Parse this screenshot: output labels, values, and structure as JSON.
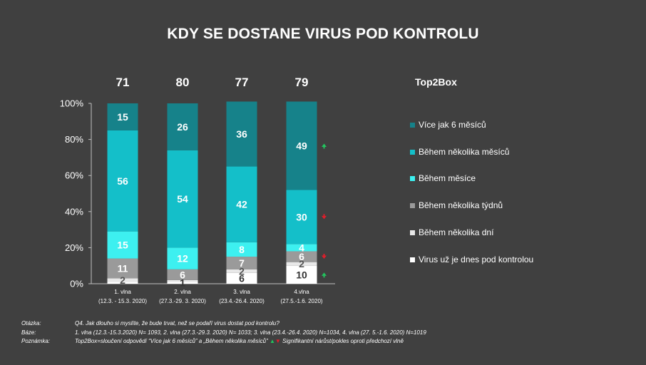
{
  "title": "KDY SE DOSTANE VIRUS POD KONTROLU",
  "legend": {
    "title": "Top2Box",
    "items": [
      {
        "label": "Více jak 6 měsíců",
        "color": "#16828a"
      },
      {
        "label": "Během několika měsíců",
        "color": "#14bfc9"
      },
      {
        "label": "Během měsíce",
        "color": "#3df0f0"
      },
      {
        "label": "Během několika týdnů",
        "color": "#9a9a9a"
      },
      {
        "label": "Během několika dní",
        "color": "#e8e8e8"
      },
      {
        "label": "Virus už je dnes pod kontrolou",
        "color": "#ffffff"
      }
    ]
  },
  "chart_data": {
    "type": "bar",
    "stacked": true,
    "categories": [
      [
        "1. vlna",
        "(12.3. - 15.3. 2020)"
      ],
      [
        "2. vlna",
        "(27.3.-29. 3. 2020)"
      ],
      [
        "3. vlna",
        "(23.4.-26.4. 2020)"
      ],
      [
        "4.vlna",
        "(27.5.-1.6. 2020)"
      ]
    ],
    "top2box": [
      "71",
      "80",
      "77",
      "79"
    ],
    "yticks": [
      "0%",
      "20%",
      "40%",
      "60%",
      "80%",
      "100%"
    ],
    "ylim": [
      0,
      100
    ],
    "series": [
      {
        "name": "Virus už je dnes pod kontrolou",
        "color": "#ffffff",
        "labelColor": "#333333",
        "values": [
          1,
          1,
          6,
          10
        ],
        "labels": [
          "",
          "1",
          "6",
          "10"
        ]
      },
      {
        "name": "Během několika dní",
        "color": "#e8e8e8",
        "labelColor": "#555555",
        "values": [
          2,
          1,
          2,
          2
        ],
        "labels": [
          "2",
          "",
          "2",
          "2"
        ]
      },
      {
        "name": "Během několika týdnů",
        "color": "#9a9a9a",
        "labelColor": "#ffffff",
        "values": [
          11,
          6,
          7,
          6
        ],
        "labels": [
          "11",
          "6",
          "7",
          "6"
        ]
      },
      {
        "name": "Během měsíce",
        "color": "#3df0f0",
        "labelColor": "#ffffff",
        "values": [
          15,
          12,
          8,
          4
        ],
        "labels": [
          "15",
          "12",
          "8",
          "4"
        ]
      },
      {
        "name": "Během několika měsíců",
        "color": "#14bfc9",
        "labelColor": "#ffffff",
        "values": [
          56,
          54,
          42,
          30
        ],
        "labels": [
          "56",
          "54",
          "42",
          "30"
        ]
      },
      {
        "name": "Více jak 6 měsíců",
        "color": "#16828a",
        "labelColor": "#ffffff",
        "values": [
          15,
          26,
          36,
          49
        ],
        "labels": [
          "15",
          "26",
          "36",
          "49"
        ]
      }
    ],
    "significance": [
      {
        "wave": 3,
        "series": "Více jak 6 měsíců",
        "direction": "up"
      },
      {
        "wave": 3,
        "series": "Během několika měsíců",
        "direction": "down"
      },
      {
        "wave": 3,
        "series": "Během několika týdnů",
        "direction": "down"
      },
      {
        "wave": 3,
        "series": "Virus už je dnes pod kontrolou",
        "direction": "up"
      }
    ],
    "colors": {
      "up": "#22c55e",
      "down": "#e11d2a"
    }
  },
  "notes": {
    "question_label": "Otázka:",
    "question": "Q4. Jak dlouho si myslíte, že bude trvat, než se podaří virus dostat pod kontrolu?",
    "base_label": "Báze:",
    "base": "1. vlna (12.3.-15.3.2020) N= 1093, 2. vlna (27.3.-29.3. 2020) N= 1033; 3. vlna (23.4.-26.4. 2020) N=1034, 4. vlna (27. 5.-1.6. 2020) N=1019",
    "note_label": "Poznámka:",
    "note": "Top2Box=sloučení odpovědí “Více jak 6 měsíců” a „Během několika měsíců”",
    "note_up": "▲",
    "note_down": "▼",
    "note_suffix": "Signifikantní nárůst/pokles oproti předchozí vlně"
  }
}
